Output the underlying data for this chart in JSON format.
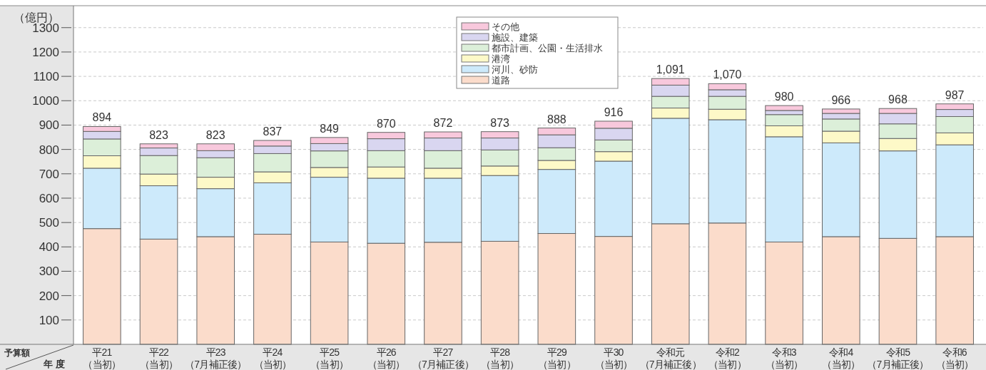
{
  "chart_data": {
    "type": "bar",
    "stacked": true,
    "ylabel": "（億円）",
    "categories": [
      "平21（当初）",
      "平22（当初）",
      "平23（7月補正後）",
      "平24（当初）",
      "平25（当初）",
      "平26（当初）",
      "平27（7月補正後）",
      "平28（当初）",
      "平29（当初）",
      "平30（当初）",
      "令和元（7月補正後）",
      "令和2（当初）",
      "令和3（当初）",
      "令和4（当初）",
      "令和5（7月補正後）",
      "令和6（当初）"
    ],
    "series": [
      {
        "name": "道路",
        "color": "#fbdccb",
        "values": [
          475,
          432,
          442,
          452,
          420,
          415,
          419,
          423,
          455,
          443,
          495,
          498,
          420,
          442,
          435,
          442
        ]
      },
      {
        "name": "河川、砂防",
        "color": "#cdeafb",
        "values": [
          248,
          219,
          197,
          211,
          266,
          267,
          263,
          270,
          263,
          309,
          433,
          424,
          432,
          385,
          359,
          377
        ]
      },
      {
        "name": "港湾",
        "color": "#fdf9c8",
        "values": [
          51,
          48,
          47,
          45,
          40,
          46,
          41,
          39,
          37,
          39,
          42,
          43,
          45,
          48,
          51,
          49
        ]
      },
      {
        "name": "都市計画、公園・生活排水",
        "color": "#dcefd9",
        "values": [
          69,
          76,
          80,
          75,
          68,
          67,
          72,
          66,
          52,
          48,
          48,
          53,
          46,
          50,
          60,
          67
        ]
      },
      {
        "name": "施設、建築",
        "color": "#d9d6f0",
        "values": [
          31,
          31,
          29,
          31,
          30,
          49,
          52,
          49,
          53,
          48,
          46,
          27,
          17,
          23,
          43,
          29
        ]
      },
      {
        "name": "その他",
        "color": "#f8c8dc",
        "values": [
          20,
          17,
          28,
          23,
          25,
          26,
          25,
          26,
          28,
          29,
          27,
          25,
          20,
          18,
          20,
          23
        ]
      }
    ],
    "totals": [
      "894",
      "823",
      "823",
      "837",
      "849",
      "870",
      "872",
      "873",
      "888",
      "916",
      "1,091",
      "1,070",
      "980",
      "966",
      "968",
      "987"
    ],
    "ylim": [
      0,
      1390
    ],
    "yticks": [
      100,
      200,
      300,
      400,
      500,
      600,
      700,
      800,
      900,
      1000,
      1100,
      1200,
      1300
    ],
    "grid": "y",
    "legend": "top",
    "annotations": [
      "予算額",
      "年 度"
    ]
  }
}
